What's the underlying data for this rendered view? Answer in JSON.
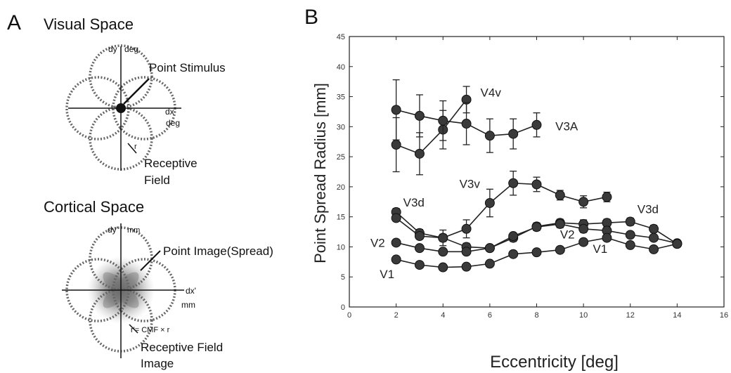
{
  "panel_a": {
    "label": "A",
    "visual_space": {
      "title": "Visual Space",
      "dy_label": "dy",
      "dy_unit": "deg",
      "dx_label": "dx",
      "dx_unit": "deg",
      "point_label": "Point Stimulus",
      "r_label": "r",
      "rf_label_line1": "Receptive",
      "rf_label_line2": "Field"
    },
    "cortical_space": {
      "title": "Cortical Space",
      "dy_label": "dy'",
      "dy_unit": "mm",
      "dx_label": "dx'",
      "dx_unit": "mm",
      "point_label": "Point Image(Spread)",
      "formula": "r'= CMF × r",
      "rf_label_line1": "Receptive Field",
      "rf_label_line2": "Image"
    }
  },
  "panel_b": {
    "label": "B"
  },
  "chart_data": {
    "type": "line",
    "title": "",
    "xlabel": "Eccentricity [deg]",
    "ylabel": "Point Spread Radius [mm]",
    "xlim": [
      0,
      16
    ],
    "ylim": [
      0,
      45
    ],
    "xticks": [
      0,
      2,
      4,
      6,
      8,
      10,
      12,
      14,
      16
    ],
    "xtick_labels": [
      "0",
      "2",
      "4",
      "6",
      "8",
      "10",
      "12",
      "14",
      "16"
    ],
    "yticks": [
      0,
      5,
      10,
      15,
      20,
      25,
      30,
      35,
      40,
      45
    ],
    "ytick_labels": [
      "0",
      "5",
      "10",
      "15",
      "20",
      "25",
      "30",
      "35",
      "40",
      "45"
    ],
    "grid": false,
    "legend": "none",
    "series": [
      {
        "name": "V4v",
        "x": [
          2,
          3,
          4,
          5
        ],
        "y": [
          27.0,
          25.5,
          29.5,
          34.5
        ],
        "err": [
          4.5,
          3.5,
          3.2,
          2.2
        ]
      },
      {
        "name": "V3A",
        "x": [
          2,
          3,
          4,
          5,
          6,
          7,
          8
        ],
        "y": [
          32.8,
          31.8,
          31.0,
          30.5,
          28.5,
          28.8,
          30.3
        ],
        "err": [
          5.0,
          3.5,
          3.3,
          3.5,
          2.8,
          2.5,
          2.0
        ]
      },
      {
        "name": "V3v",
        "x": [
          2,
          3,
          4,
          5,
          6,
          7,
          8,
          9,
          10,
          11
        ],
        "y": [
          15.8,
          12.3,
          11.5,
          13.0,
          17.3,
          20.6,
          20.4,
          18.6,
          17.5,
          18.3
        ],
        "err": [
          0.6,
          0.6,
          1.3,
          1.5,
          2.3,
          2.0,
          1.2,
          0.8,
          1.0,
          0.8
        ]
      },
      {
        "name": "V3d",
        "x": [
          2,
          3,
          4,
          5,
          6,
          7,
          8,
          9,
          10,
          11,
          12,
          13,
          14
        ],
        "y": [
          14.8,
          11.8,
          11.5,
          10.0,
          9.8,
          11.5,
          13.4,
          14.0,
          13.8,
          14.0,
          14.2,
          13.0,
          10.5
        ],
        "err": [
          0.5,
          0.5,
          0.6,
          0.6,
          0.5,
          0.6,
          0.6,
          0.6,
          0.7,
          0.6,
          0.6,
          0.6,
          0.5
        ]
      },
      {
        "name": "V2",
        "x": [
          2,
          3,
          4,
          5,
          6,
          7,
          8,
          9,
          10,
          11,
          12,
          13,
          14
        ],
        "y": [
          10.7,
          9.8,
          9.2,
          9.2,
          9.8,
          11.8,
          13.3,
          13.8,
          13.0,
          12.7,
          12.0,
          11.5,
          10.6
        ],
        "err": [
          0.4,
          0.4,
          0.4,
          0.4,
          0.4,
          0.5,
          0.6,
          0.6,
          0.6,
          0.6,
          0.5,
          0.5,
          0.4
        ]
      },
      {
        "name": "V1",
        "x": [
          2,
          3,
          4,
          5,
          6,
          7,
          8,
          9,
          10,
          11,
          12,
          13,
          14
        ],
        "y": [
          7.9,
          7.0,
          6.6,
          6.7,
          7.2,
          8.8,
          9.1,
          9.5,
          10.8,
          11.5,
          10.3,
          9.6,
          10.5
        ],
        "err": [
          0.3,
          0.3,
          0.3,
          0.3,
          0.3,
          0.4,
          0.4,
          0.4,
          0.4,
          0.4,
          0.4,
          0.4,
          0.4
        ]
      }
    ],
    "annotations": [
      "V4v",
      "V3A",
      "V3v",
      "V3d",
      "V3d",
      "V2",
      "V2",
      "V1",
      "V1"
    ]
  }
}
